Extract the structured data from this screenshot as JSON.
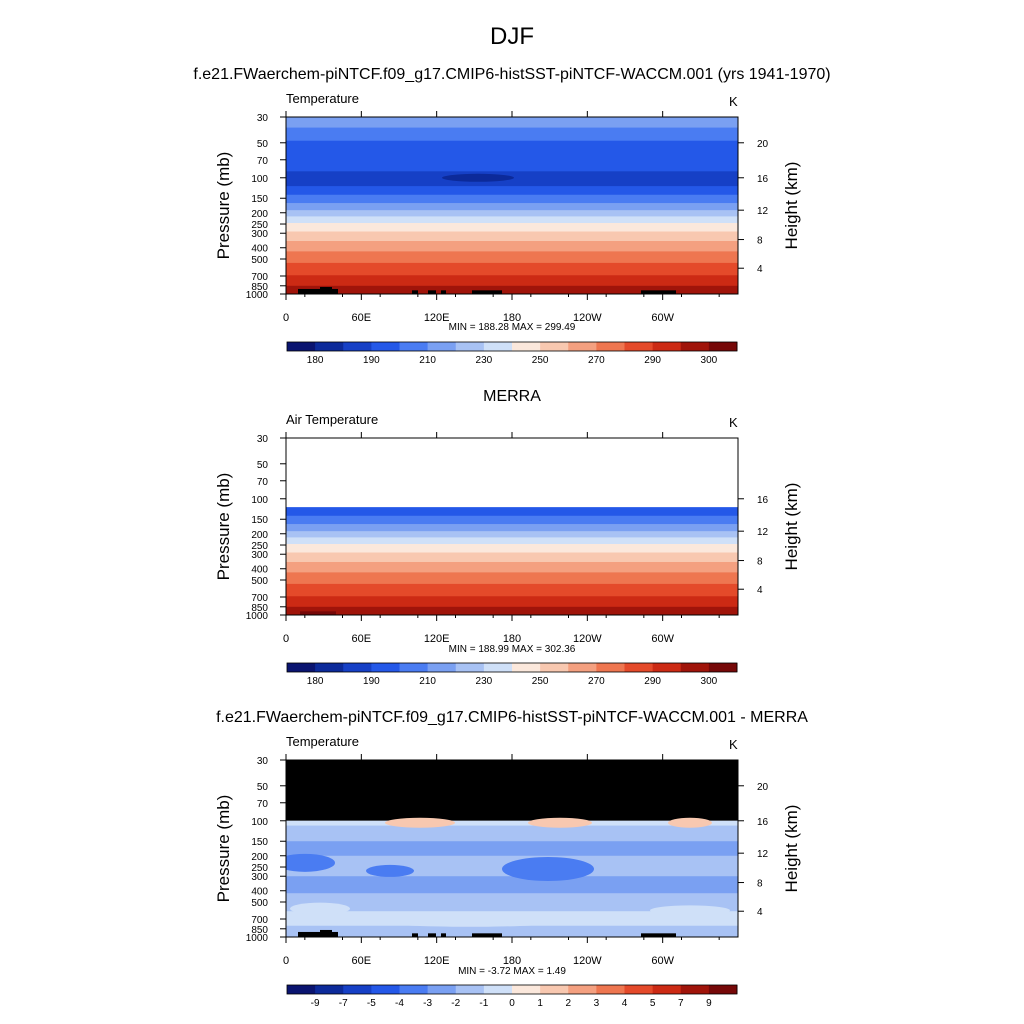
{
  "title": "DJF",
  "chart_data": [
    {
      "type": "heatmap",
      "header": "f.e21.FWaerchem-piNTCF.f09_g17.CMIP6-histSST-piNTCF-WACCM.001 (yrs 1941-1970)",
      "left_label": "Temperature",
      "units": "K",
      "ylabel": "Pressure (mb)",
      "ylabel_right": "Height (km)",
      "x_tick_labels": [
        "0",
        "60E",
        "120E",
        "180",
        "120W",
        "60W"
      ],
      "y_tick_labels": [
        "30",
        "50",
        "70",
        "100",
        "150",
        "200",
        "250",
        "300",
        "400",
        "500",
        "700",
        "850",
        "1000"
      ],
      "height_tick_labels": [
        "20",
        "16",
        "12",
        "8",
        "4"
      ],
      "stats": "MIN = 188.28  MAX = 299.49",
      "colorbar_labels": [
        "180",
        "190",
        "210",
        "230",
        "250",
        "270",
        "290",
        "300"
      ],
      "min": 188.28,
      "max": 299.49
    },
    {
      "type": "heatmap",
      "header": "MERRA",
      "left_label": "Air Temperature",
      "units": "K",
      "ylabel": "Pressure (mb)",
      "ylabel_right": "Height (km)",
      "x_tick_labels": [
        "0",
        "60E",
        "120E",
        "180",
        "120W",
        "60W"
      ],
      "y_tick_labels": [
        "30",
        "50",
        "70",
        "100",
        "150",
        "200",
        "250",
        "300",
        "400",
        "500",
        "700",
        "850",
        "1000"
      ],
      "height_tick_labels": [
        "16",
        "12",
        "8",
        "4"
      ],
      "stats": "MIN = 188.99  MAX = 302.36",
      "colorbar_labels": [
        "180",
        "190",
        "210",
        "230",
        "250",
        "270",
        "290",
        "300"
      ],
      "min": 188.99,
      "max": 302.36
    },
    {
      "type": "heatmap",
      "header": "f.e21.FWaerchem-piNTCF.f09_g17.CMIP6-histSST-piNTCF-WACCM.001 - MERRA",
      "left_label": "Temperature",
      "units": "K",
      "ylabel": "Pressure (mb)",
      "ylabel_right": "Height (km)",
      "x_tick_labels": [
        "0",
        "60E",
        "120E",
        "180",
        "120W",
        "60W"
      ],
      "y_tick_labels": [
        "30",
        "50",
        "70",
        "100",
        "150",
        "200",
        "250",
        "300",
        "400",
        "500",
        "700",
        "850",
        "1000"
      ],
      "height_tick_labels": [
        "20",
        "16",
        "12",
        "8",
        "4"
      ],
      "stats": "MIN =  -3.72  MAX =   1.49",
      "colorbar_labels": [
        "-9",
        "-7",
        "-5",
        "-4",
        "-3",
        "-2",
        "-1",
        "0",
        "1",
        "2",
        "3",
        "4",
        "5",
        "7",
        "9"
      ],
      "min": -3.72,
      "max": 1.49
    }
  ],
  "colors": {
    "temp_bar": [
      "#0a1470",
      "#0c2a9a",
      "#1640c6",
      "#2458e8",
      "#4a7cf2",
      "#7aa0f2",
      "#a8c2f4",
      "#cfe0f8",
      "#fbe8dc",
      "#f8c8b0",
      "#f4a080",
      "#ee7650",
      "#e44a2a",
      "#cc2a14",
      "#a0140a",
      "#760808"
    ],
    "diff_bar": [
      "#0a1470",
      "#0c2a9a",
      "#1640c6",
      "#2458e8",
      "#4a7cf2",
      "#7aa0f2",
      "#a8c2f4",
      "#cfe0f8",
      "#fbe8dc",
      "#f8c8b0",
      "#f4a080",
      "#ee7650",
      "#e44a2a",
      "#cc2a14",
      "#a0140a",
      "#760808"
    ],
    "missing": "#000000"
  }
}
